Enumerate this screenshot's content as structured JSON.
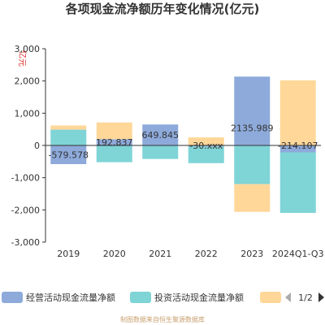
{
  "chart_data": {
    "type": "bar",
    "stacked": true,
    "title": "各项现金流净额历年变化情况(亿元)",
    "unit_label": "亿元",
    "categories": [
      "2019",
      "2020",
      "2021",
      "2022",
      "2023",
      "2024Q1-Q3"
    ],
    "series": [
      {
        "name": "经营活动现金流量净额",
        "color": "#8eaadb",
        "values": [
          -579.578,
          192.837,
          649.845,
          -30,
          2135.989,
          -214.107
        ]
      },
      {
        "name": "投资活动现金流量净额",
        "color": "#7fd4d6",
        "values": [
          490,
          -520,
          -420,
          -520,
          -1200,
          -1880
        ]
      },
      {
        "name": "",
        "color": "#ffd799",
        "values": [
          130,
          520,
          0,
          250,
          -860,
          2020
        ]
      }
    ],
    "data_labels": [
      "-579.578",
      "192.837",
      "649.845",
      "-30.xxx",
      "2135.989",
      "-214.107"
    ],
    "ylim": [
      -3000,
      3000
    ],
    "yticks": [
      "3,000",
      "2,000",
      "1,000",
      "0",
      "-1,000",
      "-2,000",
      "-3,000"
    ],
    "grid": false,
    "legend": {
      "position": "bottom",
      "page": "1/2"
    },
    "source": "制图数据来自恒生聚源数据库"
  }
}
